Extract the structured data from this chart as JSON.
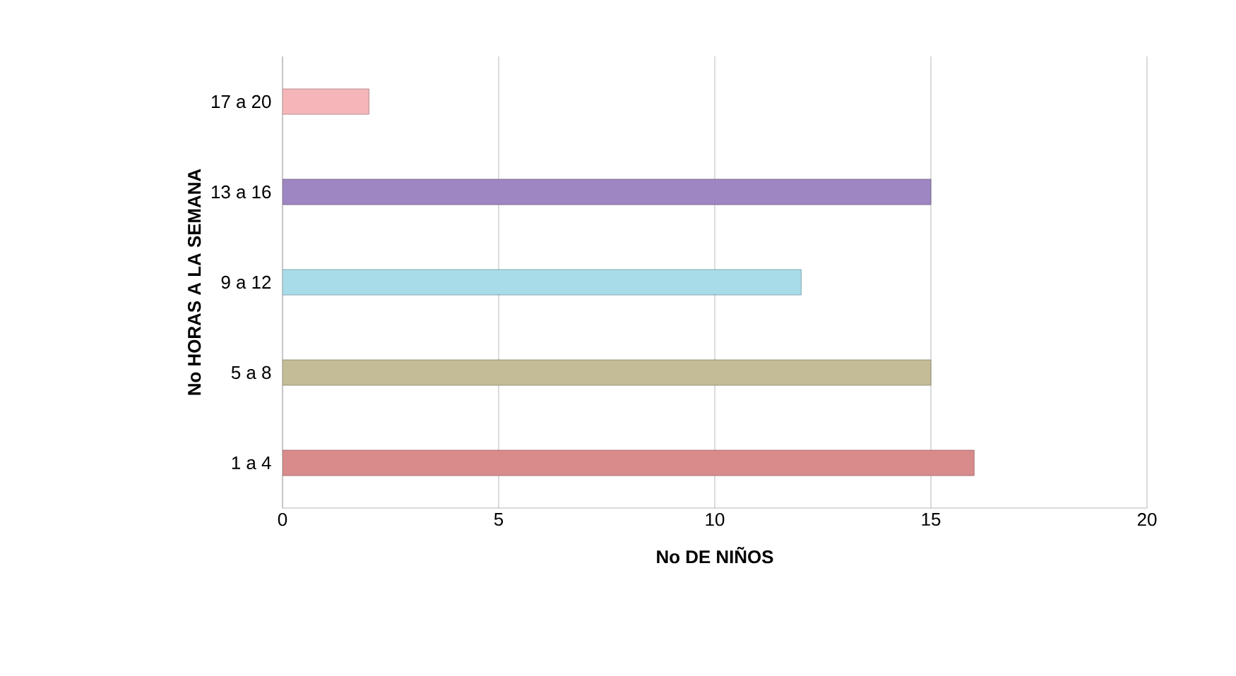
{
  "chart_data": {
    "type": "bar",
    "orientation": "horizontal",
    "xlabel": "No DE NIÑOS",
    "ylabel": "No HORAS A LA SEMANA",
    "categories": [
      "17 a 20",
      "13 a 16",
      "9 a 12",
      "5 a 8",
      "1 a 4"
    ],
    "values": [
      2,
      15,
      12,
      15,
      16
    ],
    "colors": [
      "#f4b6b8",
      "#9d86c1",
      "#a8dce8",
      "#c4bc96",
      "#d98b8c"
    ],
    "xlim": [
      0,
      20
    ],
    "xticks": [
      0,
      5,
      10,
      15,
      20
    ],
    "grid": "x"
  }
}
